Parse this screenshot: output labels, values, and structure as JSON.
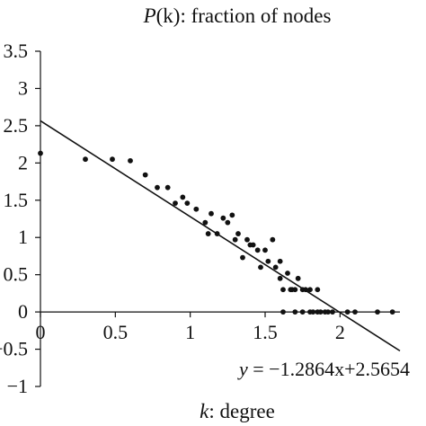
{
  "chart_data": {
    "type": "scatter",
    "title_prefix": "P",
    "title_var": "(k)",
    "title_suffix": ": fraction of nodes",
    "xlabel_var": "k",
    "xlabel_suffix": ": degree",
    "ylabel": "",
    "xlim": [
      0,
      2.4
    ],
    "ylim": [
      -1,
      3.5
    ],
    "xticks": [
      0,
      0.5,
      1,
      1.5,
      2
    ],
    "xtick_labels": [
      "0",
      "0.5",
      "1",
      "1.5",
      "2"
    ],
    "yticks": [
      -1,
      -0.5,
      0,
      0.5,
      1,
      1.5,
      2,
      2.5,
      3,
      3.5
    ],
    "ytick_labels": [
      "−1",
      "−0.5",
      "0",
      "0.5",
      "1",
      "1.5",
      "2",
      "2.5",
      "3",
      "3.5"
    ],
    "grid": false,
    "annotation": {
      "y_var": "y",
      "text": " = −1.2864x+2.5654"
    },
    "trendline": {
      "slope": -1.2864,
      "intercept": 2.5654
    },
    "series": [
      {
        "points": [
          [
            0.0,
            2.13
          ],
          [
            0.3,
            2.05
          ],
          [
            0.48,
            2.05
          ],
          [
            0.6,
            2.03
          ],
          [
            0.7,
            1.84
          ],
          [
            0.78,
            1.67
          ],
          [
            0.85,
            1.67
          ],
          [
            0.9,
            1.46
          ],
          [
            0.95,
            1.54
          ],
          [
            0.98,
            1.46
          ],
          [
            1.04,
            1.38
          ],
          [
            1.1,
            1.2
          ],
          [
            1.12,
            1.05
          ],
          [
            1.14,
            1.32
          ],
          [
            1.18,
            1.05
          ],
          [
            1.22,
            1.26
          ],
          [
            1.25,
            1.2
          ],
          [
            1.28,
            1.3
          ],
          [
            1.3,
            0.97
          ],
          [
            1.32,
            1.05
          ],
          [
            1.35,
            0.73
          ],
          [
            1.38,
            0.97
          ],
          [
            1.4,
            0.9
          ],
          [
            1.42,
            0.9
          ],
          [
            1.45,
            0.83
          ],
          [
            1.47,
            0.6
          ],
          [
            1.5,
            0.83
          ],
          [
            1.52,
            0.68
          ],
          [
            1.55,
            0.97
          ],
          [
            1.57,
            0.6
          ],
          [
            1.6,
            0.68
          ],
          [
            1.62,
            0.3
          ],
          [
            1.6,
            0.45
          ],
          [
            1.65,
            0.52
          ],
          [
            1.67,
            0.3
          ],
          [
            1.68,
            0.3
          ],
          [
            1.7,
            0.3
          ],
          [
            1.72,
            0.45
          ],
          [
            1.75,
            0.3
          ],
          [
            1.77,
            0.3
          ],
          [
            1.8,
            0.3
          ],
          [
            1.85,
            0.3
          ],
          [
            1.62,
            0.0
          ],
          [
            1.7,
            0.0
          ],
          [
            1.75,
            0.0
          ],
          [
            1.8,
            0.0
          ],
          [
            1.82,
            0.0
          ],
          [
            1.85,
            0.0
          ],
          [
            1.87,
            0.0
          ],
          [
            1.9,
            0.0
          ],
          [
            1.92,
            0.0
          ],
          [
            1.95,
            0.0
          ],
          [
            2.05,
            0.0
          ],
          [
            2.1,
            0.0
          ],
          [
            2.25,
            0.0
          ],
          [
            2.35,
            0.0
          ]
        ]
      }
    ]
  }
}
